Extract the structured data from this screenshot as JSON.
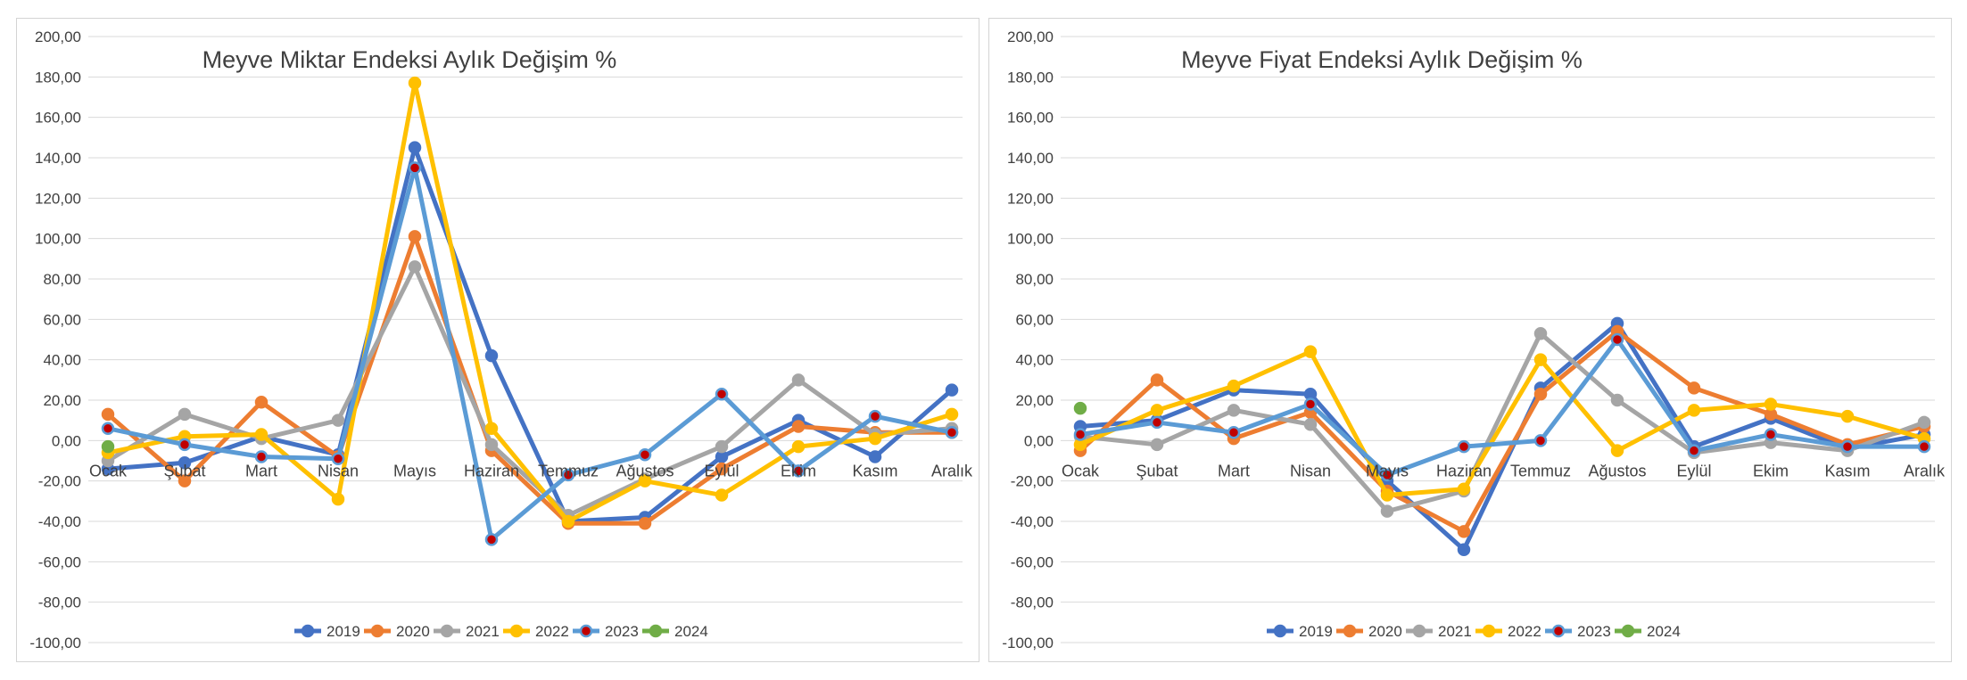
{
  "colors": {
    "2019": "#4472C4",
    "2020": "#ED7D31",
    "2021": "#A5A5A5",
    "2022": "#FFC000",
    "2023": "#5B9BD5",
    "2024": "#70AD47",
    "marker_2023": "#C00000",
    "grid": "#D9D9D9",
    "text": "#404040"
  },
  "chart_data": [
    {
      "type": "line",
      "title": "Meyve Miktar Endeksi Aylık Değişim %",
      "categories": [
        "Ocak",
        "Şubat",
        "Mart",
        "Nisan",
        "Mayıs",
        "Haziran",
        "Temmuz",
        "Ağustos",
        "Eylül",
        "Ekim",
        "Kasım",
        "Aralık"
      ],
      "ylim": [
        -100,
        200
      ],
      "ytick_labels": [
        "200,00",
        "180,00",
        "160,00",
        "140,00",
        "120,00",
        "100,00",
        "80,00",
        "60,00",
        "40,00",
        "20,00",
        "0,00",
        "-20,00",
        "-40,00",
        "-60,00",
        "-80,00",
        "-100,00"
      ],
      "grid": true,
      "legend_position": "bottom",
      "series": [
        {
          "name": "2019",
          "values": [
            -14,
            -11,
            2,
            -7,
            145,
            42,
            -40,
            -38,
            -8,
            10,
            -8,
            25
          ]
        },
        {
          "name": "2020",
          "values": [
            13,
            -20,
            19,
            -8,
            101,
            -5,
            -41,
            -41,
            -14,
            7,
            4,
            4
          ]
        },
        {
          "name": "2021",
          "values": [
            -10,
            13,
            1,
            10,
            86,
            -2,
            -37,
            -19,
            -3,
            30,
            3,
            6
          ]
        },
        {
          "name": "2022",
          "values": [
            -6,
            2,
            3,
            -29,
            177,
            6,
            -40,
            -20,
            -27,
            -3,
            1,
            13
          ]
        },
        {
          "name": "2023",
          "values": [
            6,
            -2,
            -8,
            -9,
            135,
            -49,
            -17,
            -7,
            23,
            -15,
            12,
            4
          ]
        },
        {
          "name": "2024",
          "values": [
            -3,
            null,
            null,
            null,
            null,
            null,
            null,
            null,
            null,
            null,
            null,
            null
          ]
        }
      ]
    },
    {
      "type": "line",
      "title": "Meyve Fiyat Endeksi Aylık Değişim %",
      "categories": [
        "Ocak",
        "Şubat",
        "Mart",
        "Nisan",
        "Mayıs",
        "Haziran",
        "Temmuz",
        "Ağustos",
        "Eylül",
        "Ekim",
        "Kasım",
        "Aralık"
      ],
      "ylim": [
        -100,
        200
      ],
      "ytick_labels": [
        "200,00",
        "180,00",
        "160,00",
        "140,00",
        "120,00",
        "100,00",
        "80,00",
        "60,00",
        "40,00",
        "20,00",
        "0,00",
        "-20,00",
        "-40,00",
        "-60,00",
        "-80,00",
        "-100,00"
      ],
      "grid": true,
      "legend_position": "bottom",
      "series": [
        {
          "name": "2019",
          "values": [
            7,
            10,
            25,
            23,
            -20,
            -54,
            26,
            58,
            -3,
            11,
            -4,
            3
          ]
        },
        {
          "name": "2020",
          "values": [
            -5,
            30,
            1,
            14,
            -25,
            -45,
            23,
            54,
            26,
            13,
            -2,
            7
          ]
        },
        {
          "name": "2021",
          "values": [
            2,
            -2,
            15,
            8,
            -35,
            -25,
            53,
            20,
            -6,
            -1,
            -5,
            9
          ]
        },
        {
          "name": "2022",
          "values": [
            -2,
            15,
            27,
            44,
            -27,
            -24,
            40,
            -5,
            15,
            18,
            12,
            1
          ]
        },
        {
          "name": "2023",
          "values": [
            3,
            9,
            4,
            18,
            -17,
            -3,
            0,
            50,
            -5,
            3,
            -3,
            -3
          ]
        },
        {
          "name": "2024",
          "values": [
            16,
            null,
            null,
            null,
            null,
            null,
            null,
            null,
            null,
            null,
            null,
            null
          ]
        }
      ]
    }
  ]
}
